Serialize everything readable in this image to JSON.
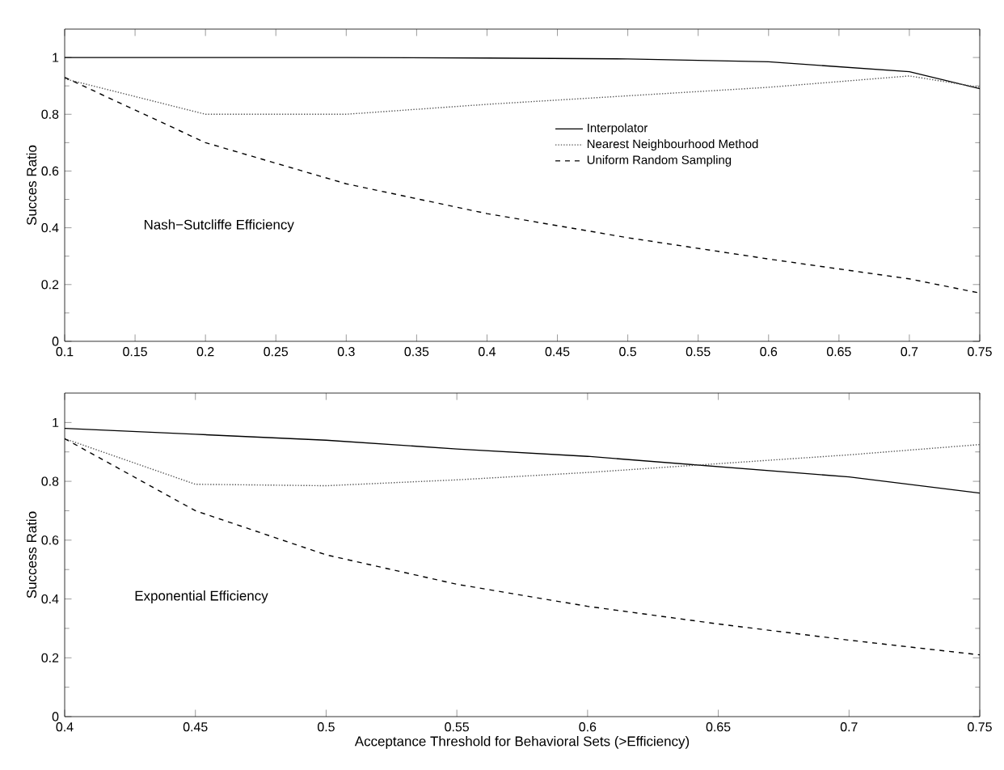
{
  "chart_data": [
    {
      "type": "line",
      "ylabel": "Succes Ratio",
      "annotations": [
        "Nash−Sutcliffe Efficiency"
      ],
      "x": [
        0.1,
        0.2,
        0.3,
        0.4,
        0.5,
        0.6,
        0.7,
        0.75
      ],
      "series": [
        {
          "name": "Interpolator",
          "color": "#000000",
          "line_style": "solid",
          "values": [
            1,
            1,
            1,
            0.998,
            0.995,
            0.985,
            0.95,
            0.89
          ]
        },
        {
          "name": "Nearest Neighbourhood Method",
          "color": "#555555",
          "line_style": "dotted",
          "values": [
            0.925,
            0.8,
            0.8,
            0.835,
            0.865,
            0.895,
            0.935,
            0.895
          ]
        },
        {
          "name": "Uniform Random Sampling",
          "color": "#000000",
          "line_style": "dashed",
          "values": [
            0.93,
            0.7,
            0.555,
            0.45,
            0.365,
            0.29,
            0.22,
            0.17
          ]
        }
      ],
      "xlim": [
        0.1,
        0.75
      ],
      "xticks": [
        0.1,
        0.15,
        0.2,
        0.25,
        0.3,
        0.35,
        0.4,
        0.45,
        0.5,
        0.55,
        0.6,
        0.65,
        0.7,
        0.75
      ],
      "ylim": [
        0,
        1.1
      ],
      "yticks": [
        0,
        0.2,
        0.4,
        0.6,
        0.8,
        1
      ],
      "legend": "right",
      "grid": false,
      "marker": "none"
    },
    {
      "type": "line",
      "xlabel": "Acceptance Threshold for Behavioral Sets (>Efficiency)",
      "ylabel": "Success Ratio",
      "annotations": [
        "Exponential Efficiency"
      ],
      "x": [
        0.4,
        0.45,
        0.5,
        0.55,
        0.6,
        0.65,
        0.7,
        0.75
      ],
      "series": [
        {
          "color": "#000000",
          "line_style": "solid",
          "values": [
            0.98,
            0.96,
            0.94,
            0.91,
            0.885,
            0.85,
            0.815,
            0.76
          ]
        },
        {
          "color": "#555555",
          "line_style": "dotted",
          "values": [
            0.945,
            0.79,
            0.785,
            0.805,
            0.83,
            0.86,
            0.89,
            0.925
          ]
        },
        {
          "color": "#000000",
          "line_style": "dashed",
          "values": [
            0.945,
            0.7,
            0.55,
            0.45,
            0.375,
            0.315,
            0.26,
            0.21
          ]
        }
      ],
      "xlim": [
        0.4,
        0.75
      ],
      "xticks": [
        0.4,
        0.45,
        0.5,
        0.55,
        0.6,
        0.65,
        0.7,
        0.75
      ],
      "ylim": [
        0,
        1.1
      ],
      "yticks": [
        0,
        0.2,
        0.4,
        0.6,
        0.8,
        1
      ],
      "legend": false,
      "grid": false,
      "marker": "none"
    }
  ]
}
